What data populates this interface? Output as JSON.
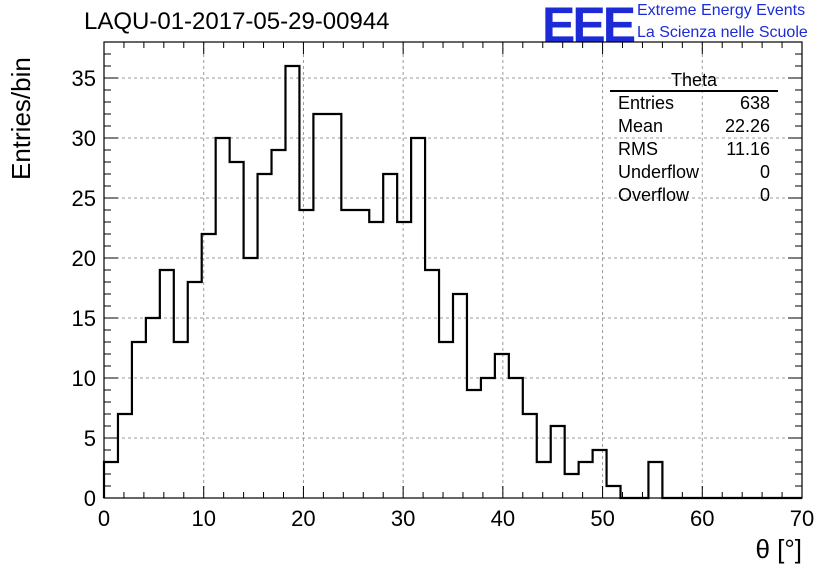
{
  "header": {
    "title": "LAQU-01-2017-05-29-00944",
    "logo_text": "EEE",
    "logo_line1": "Extreme Energy Events",
    "logo_line2": "La Scienza nelle Scuole"
  },
  "stats": {
    "title": "Theta",
    "rows": [
      {
        "label": "Entries",
        "value": "638"
      },
      {
        "label": "Mean",
        "value": "22.26"
      },
      {
        "label": "RMS",
        "value": "11.16"
      },
      {
        "label": "Underflow",
        "value": "0"
      },
      {
        "label": "Overflow",
        "value": "0"
      }
    ]
  },
  "chart_data": {
    "type": "bar",
    "style": "step-histogram",
    "xlabel": "θ [°]",
    "ylabel": "Entries/bin",
    "xlim": [
      0,
      70
    ],
    "ylim": [
      0,
      38
    ],
    "bin_width": 1.4,
    "grid": true,
    "x_ticks": [
      0,
      10,
      20,
      30,
      40,
      50,
      60,
      70
    ],
    "y_ticks": [
      0,
      5,
      10,
      15,
      20,
      25,
      30,
      35
    ],
    "values": [
      3,
      7,
      13,
      15,
      19,
      13,
      18,
      22,
      30,
      28,
      20,
      27,
      29,
      36,
      24,
      32,
      32,
      24,
      24,
      23,
      27,
      23,
      30,
      19,
      13,
      17,
      9,
      10,
      12,
      10,
      7,
      3,
      6,
      2,
      3,
      4,
      1,
      0,
      0,
      3,
      0,
      0,
      0,
      0,
      0,
      0,
      0,
      0,
      0,
      0
    ],
    "colors": {
      "line": "#000000",
      "grid": "#9a9a9a"
    }
  }
}
